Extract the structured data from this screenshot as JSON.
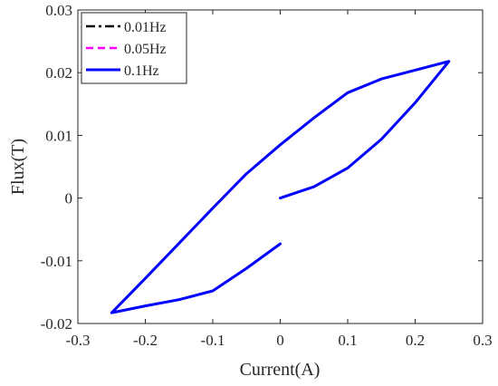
{
  "chart_data": {
    "type": "line",
    "title": "",
    "xlabel": "Current(A)",
    "ylabel": "Flux(T)",
    "xlim": [
      -0.3,
      0.3
    ],
    "ylim": [
      -0.02,
      0.03
    ],
    "x_ticks": [
      -0.3,
      -0.2,
      -0.1,
      0,
      0.1,
      0.2,
      0.3
    ],
    "x_tick_labels": [
      "-0.3",
      "-0.2",
      "-0.1",
      "0",
      "0.1",
      "0.2",
      "0.3"
    ],
    "y_ticks": [
      -0.02,
      -0.01,
      0,
      0.01,
      0.02,
      0.03
    ],
    "y_tick_labels": [
      "-0.02",
      "-0.01",
      "0",
      "0.01",
      "0.02",
      "0.03"
    ],
    "grid": false,
    "legend_position": "top-left",
    "series": [
      {
        "name": "0.01Hz",
        "color": "#000000",
        "line_style": "dash-dot",
        "x": [
          0,
          0.05,
          0.1,
          0.15,
          0.2,
          0.25,
          0.2,
          0.15,
          0.1,
          0.05,
          0,
          -0.05,
          -0.1,
          -0.15,
          -0.2,
          -0.25,
          -0.2,
          -0.15,
          -0.1,
          -0.05,
          0
        ],
        "y": [
          0,
          0.0018,
          0.0048,
          0.0094,
          0.0152,
          0.0218,
          0.0204,
          0.019,
          0.0168,
          0.0128,
          0.0085,
          0.0039,
          -0.0016,
          -0.0072,
          -0.0128,
          -0.0183,
          -0.0172,
          -0.0162,
          -0.0148,
          -0.0112,
          -0.0073
        ]
      },
      {
        "name": "0.05Hz",
        "color": "#ff00ff",
        "line_style": "dashed",
        "x": [
          0,
          0.05,
          0.1,
          0.15,
          0.2,
          0.25,
          0.2,
          0.15,
          0.1,
          0.05,
          0,
          -0.05,
          -0.1,
          -0.15,
          -0.2,
          -0.25,
          -0.2,
          -0.15,
          -0.1,
          -0.05,
          0
        ],
        "y": [
          0,
          0.0018,
          0.0048,
          0.0094,
          0.0152,
          0.0218,
          0.0204,
          0.019,
          0.0168,
          0.0128,
          0.0085,
          0.0039,
          -0.0016,
          -0.0072,
          -0.0128,
          -0.0183,
          -0.0172,
          -0.0162,
          -0.0148,
          -0.0112,
          -0.0073
        ]
      },
      {
        "name": "0.1Hz",
        "color": "#0000ff",
        "line_style": "solid",
        "x": [
          0,
          0.05,
          0.1,
          0.15,
          0.2,
          0.25,
          0.2,
          0.15,
          0.1,
          0.05,
          0,
          -0.05,
          -0.1,
          -0.15,
          -0.2,
          -0.25,
          -0.2,
          -0.15,
          -0.1,
          -0.05,
          0
        ],
        "y": [
          0,
          0.0018,
          0.0048,
          0.0094,
          0.0152,
          0.0218,
          0.0204,
          0.019,
          0.0168,
          0.0128,
          0.0085,
          0.0039,
          -0.0016,
          -0.0072,
          -0.0128,
          -0.0183,
          -0.0172,
          -0.0162,
          -0.0148,
          -0.0112,
          -0.0073
        ]
      }
    ]
  }
}
